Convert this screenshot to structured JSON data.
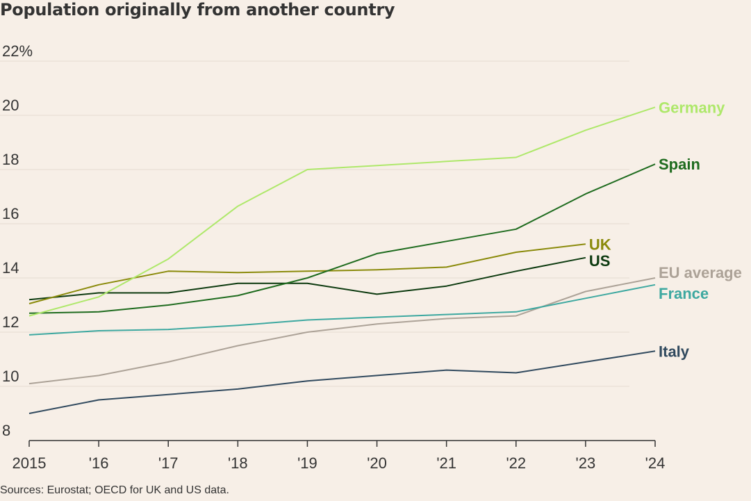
{
  "chart_data": {
    "type": "line",
    "title": "Population originally from another country",
    "source": "Sources: Eurostat; OECD for UK and US data.",
    "x": [
      2015,
      2016,
      2017,
      2018,
      2019,
      2020,
      2021,
      2022,
      2023,
      2024
    ],
    "x_tick_labels": [
      "2015",
      "'16",
      "'17",
      "'18",
      "'19",
      "'20",
      "'21",
      "'22",
      "'23",
      "'24"
    ],
    "y_ticks": [
      8,
      10,
      12,
      14,
      16,
      18,
      20,
      22
    ],
    "y_tick_labels": [
      "8",
      "10",
      "12",
      "14",
      "16",
      "18",
      "20",
      "22%"
    ],
    "ylim": [
      8,
      22
    ],
    "grid": true,
    "series": [
      {
        "name": "EU average",
        "color": "#aca297",
        "values": [
          10.1,
          10.4,
          10.9,
          11.5,
          12.0,
          12.3,
          12.5,
          12.6,
          13.5,
          14.0
        ]
      },
      {
        "name": "Italy",
        "color": "#30495e",
        "values": [
          9.0,
          9.5,
          9.7,
          9.9,
          10.2,
          10.4,
          10.6,
          10.5,
          10.9,
          11.3
        ]
      },
      {
        "name": "France",
        "color": "#3da8a0",
        "values": [
          11.9,
          12.05,
          12.1,
          12.25,
          12.45,
          12.55,
          12.65,
          12.75,
          13.25,
          13.75
        ]
      },
      {
        "name": "US",
        "color": "#0c3a0f",
        "values": [
          13.2,
          13.45,
          13.45,
          13.8,
          13.8,
          13.4,
          13.7,
          14.25,
          14.75,
          null
        ]
      },
      {
        "name": "UK",
        "color": "#8a8a0a",
        "values": [
          13.05,
          13.75,
          14.25,
          14.2,
          14.25,
          14.3,
          14.4,
          14.95,
          15.25,
          null
        ]
      },
      {
        "name": "Spain",
        "color": "#1e6b1e",
        "values": [
          12.7,
          12.75,
          13.0,
          13.35,
          14.0,
          14.9,
          15.35,
          15.8,
          17.1,
          18.2
        ]
      },
      {
        "name": "Germany",
        "color": "#aee86a",
        "values": [
          12.6,
          13.3,
          14.7,
          16.65,
          18.0,
          18.15,
          18.3,
          18.45,
          19.45,
          20.3
        ]
      }
    ]
  }
}
